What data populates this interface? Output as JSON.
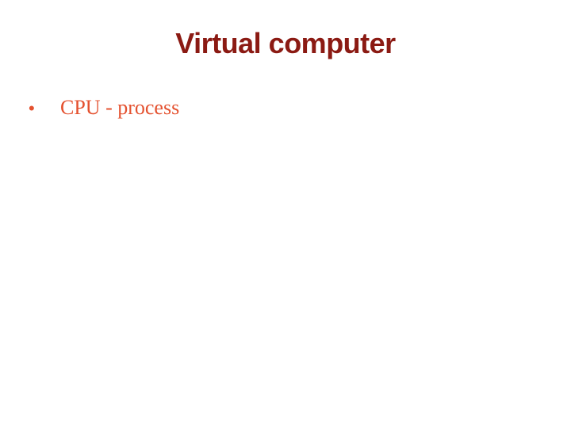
{
  "slide": {
    "title": "Virtual computer",
    "bullets": [
      {
        "marker": "•",
        "text": "CPU - process"
      }
    ]
  },
  "colors": {
    "title": "#8b1a13",
    "bullet": "#e4512f",
    "background": "#ffffff"
  }
}
